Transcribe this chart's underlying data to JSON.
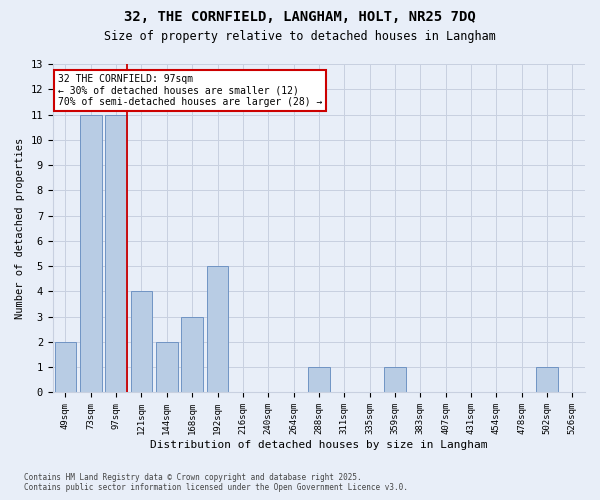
{
  "title": "32, THE CORNFIELD, LANGHAM, HOLT, NR25 7DQ",
  "subtitle": "Size of property relative to detached houses in Langham",
  "xlabel": "Distribution of detached houses by size in Langham",
  "ylabel": "Number of detached properties",
  "categories": [
    "49sqm",
    "73sqm",
    "97sqm",
    "121sqm",
    "144sqm",
    "168sqm",
    "192sqm",
    "216sqm",
    "240sqm",
    "264sqm",
    "288sqm",
    "311sqm",
    "335sqm",
    "359sqm",
    "383sqm",
    "407sqm",
    "431sqm",
    "454sqm",
    "478sqm",
    "502sqm",
    "526sqm"
  ],
  "values": [
    2,
    11,
    11,
    4,
    2,
    3,
    5,
    0,
    0,
    0,
    1,
    0,
    0,
    1,
    0,
    0,
    0,
    0,
    0,
    1,
    0
  ],
  "bar_color": "#b8cce4",
  "bar_edgecolor": "#7094c4",
  "highlight_index": 2,
  "red_line_index": 2,
  "annotation_title": "32 THE CORNFIELD: 97sqm",
  "annotation_line1": "← 30% of detached houses are smaller (12)",
  "annotation_line2": "70% of semi-detached houses are larger (28) →",
  "annotation_box_color": "#ffffff",
  "annotation_box_edgecolor": "#cc0000",
  "red_line_color": "#cc0000",
  "ylim": [
    0,
    13
  ],
  "yticks": [
    0,
    1,
    2,
    3,
    4,
    5,
    6,
    7,
    8,
    9,
    10,
    11,
    12,
    13
  ],
  "footnote1": "Contains HM Land Registry data © Crown copyright and database right 2025.",
  "footnote2": "Contains public sector information licensed under the Open Government Licence v3.0.",
  "background_color": "#e8eef8",
  "grid_color": "#c8d0e0"
}
